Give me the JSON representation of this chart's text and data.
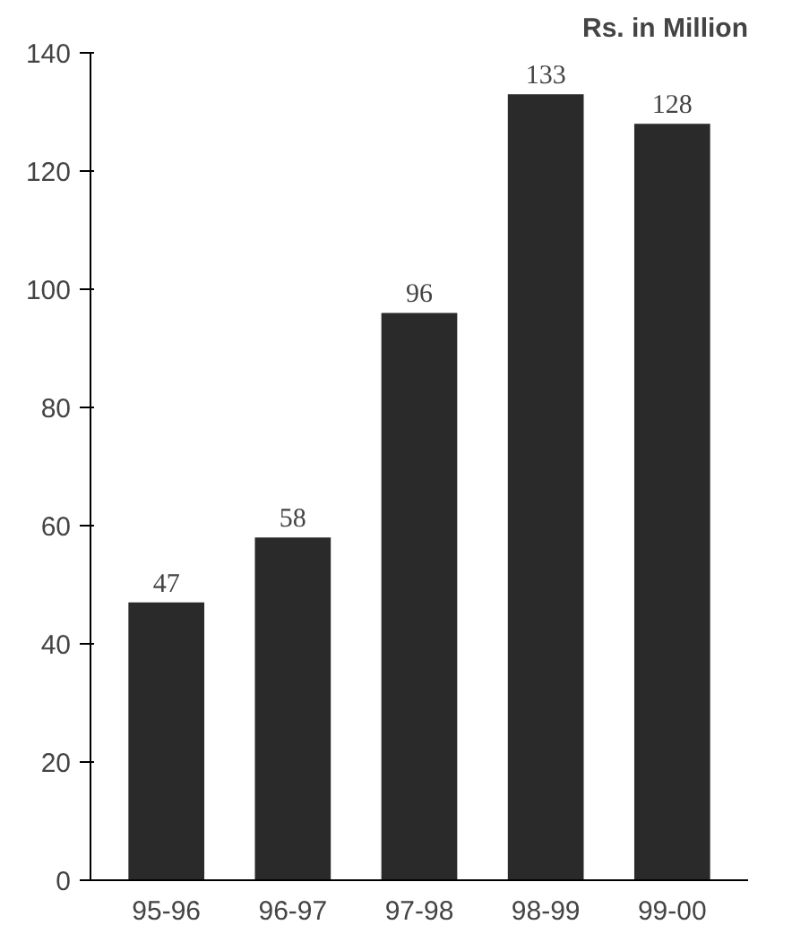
{
  "chart_data": {
    "type": "bar",
    "title": "Rs. in Million",
    "categories": [
      "95-96",
      "96-97",
      "97-98",
      "98-99",
      "99-00"
    ],
    "values": [
      47,
      58,
      96,
      133,
      128
    ],
    "color": "#2a2a2a",
    "ylim": [
      0,
      140
    ],
    "yticks": [
      0,
      20,
      40,
      60,
      80,
      100,
      120,
      140
    ],
    "grid": false,
    "data_labels": true
  }
}
